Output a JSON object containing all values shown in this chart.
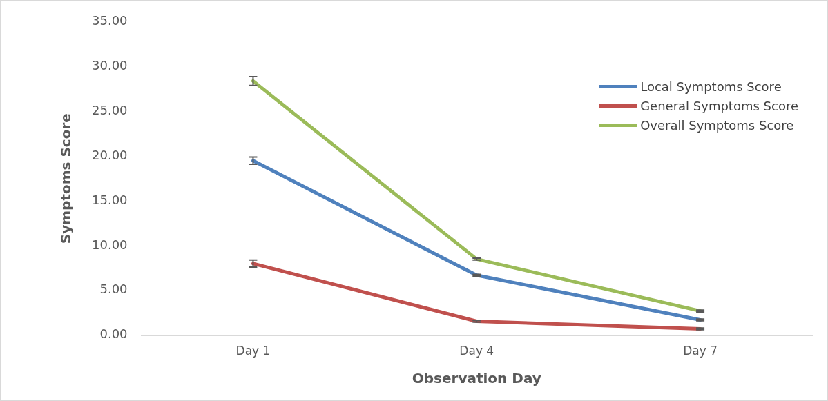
{
  "chart_data": {
    "type": "line",
    "xlabel": "Observation Day",
    "ylabel": "Symptoms Score",
    "categories": [
      "Day 1",
      "Day 4",
      "Day 7"
    ],
    "series": [
      {
        "name": "Local Symptoms Score",
        "color": "#4f81bd",
        "values": [
          19.5,
          6.7,
          1.7
        ],
        "errors": [
          0.4,
          0.1,
          0.1
        ]
      },
      {
        "name": "General Symptoms Score",
        "color": "#c0504d",
        "values": [
          8.0,
          1.55,
          0.7
        ],
        "errors": [
          0.4,
          0.1,
          0.1
        ]
      },
      {
        "name": "Overall Symptoms Score",
        "color": "#9bbb59",
        "values": [
          28.4,
          8.5,
          2.7
        ],
        "errors": [
          0.5,
          0.1,
          0.1
        ]
      }
    ],
    "ylim": [
      0,
      35
    ],
    "yticks": [
      {
        "value": 0,
        "label": "0.00"
      },
      {
        "value": 5,
        "label": "5.00"
      },
      {
        "value": 10,
        "label": "10.00"
      },
      {
        "value": 15,
        "label": "15.00"
      },
      {
        "value": 20,
        "label": "20.00"
      },
      {
        "value": 25,
        "label": "25.00"
      },
      {
        "value": 30,
        "label": "30.00"
      },
      {
        "value": 35,
        "label": "35.00"
      }
    ],
    "grid": false,
    "legend": "top right",
    "marker": "none",
    "line_style": "solid"
  }
}
